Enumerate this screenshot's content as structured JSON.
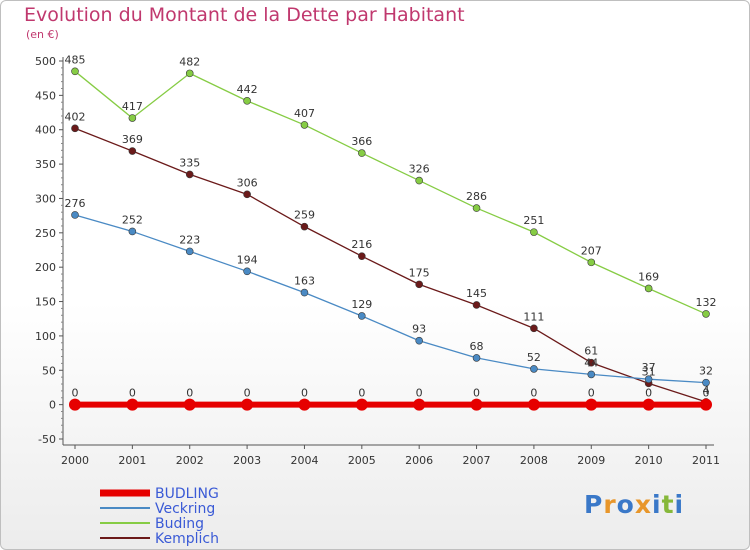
{
  "chart_data": {
    "type": "line",
    "title": "Evolution du Montant de la Dette par Habitant",
    "subtitle": "(en €)",
    "x": [
      "2000",
      "2001",
      "2002",
      "2003",
      "2004",
      "2005",
      "2006",
      "2007",
      "2008",
      "2009",
      "2010",
      "2011"
    ],
    "ylim": [
      -50,
      500
    ],
    "yticks": [
      -50,
      0,
      50,
      100,
      150,
      200,
      250,
      300,
      350,
      400,
      450,
      500
    ],
    "grid": false,
    "legend_position": "bottom-left",
    "series": [
      {
        "name": "BUDLING",
        "color": "#e60000",
        "values": [
          0,
          0,
          0,
          0,
          0,
          0,
          0,
          0,
          0,
          0,
          0,
          0
        ],
        "labels": [
          "0",
          "0",
          "0",
          "0",
          "0",
          "0",
          "0",
          "0",
          "0",
          "0",
          "0",
          "0"
        ]
      },
      {
        "name": "Veckring",
        "color": "#4a8ac4",
        "values": [
          276,
          252,
          223,
          194,
          163,
          129,
          93,
          68,
          52,
          44,
          37,
          32
        ],
        "labels": [
          "276",
          "252",
          "223",
          "194",
          "163",
          "129",
          "93",
          "68",
          "52",
          "44",
          "37",
          "32"
        ]
      },
      {
        "name": "Buding",
        "color": "#86cc44",
        "values": [
          485,
          417,
          482,
          442,
          407,
          366,
          326,
          286,
          251,
          207,
          169,
          132
        ],
        "labels": [
          "485",
          "417",
          "482",
          "442",
          "407",
          "366",
          "326",
          "286",
          "251",
          "207",
          "169",
          "132"
        ]
      },
      {
        "name": "Kemplich",
        "color": "#6b1a1a",
        "values": [
          402,
          369,
          335,
          306,
          259,
          216,
          175,
          145,
          111,
          61,
          31,
          4
        ],
        "labels": [
          "402",
          "369",
          "335",
          "306",
          "259",
          "216",
          "175",
          "145",
          "111",
          "61",
          "31",
          "4"
        ]
      }
    ]
  },
  "logo": {
    "letters": [
      "P",
      "r",
      "o",
      "x",
      "i",
      "t",
      "i"
    ],
    "colors": [
      "#3a78c8",
      "#e8962a",
      "#3a78c8",
      "#e8962a",
      "#3a78c8",
      "#86b83a",
      "#3a78c8"
    ]
  }
}
